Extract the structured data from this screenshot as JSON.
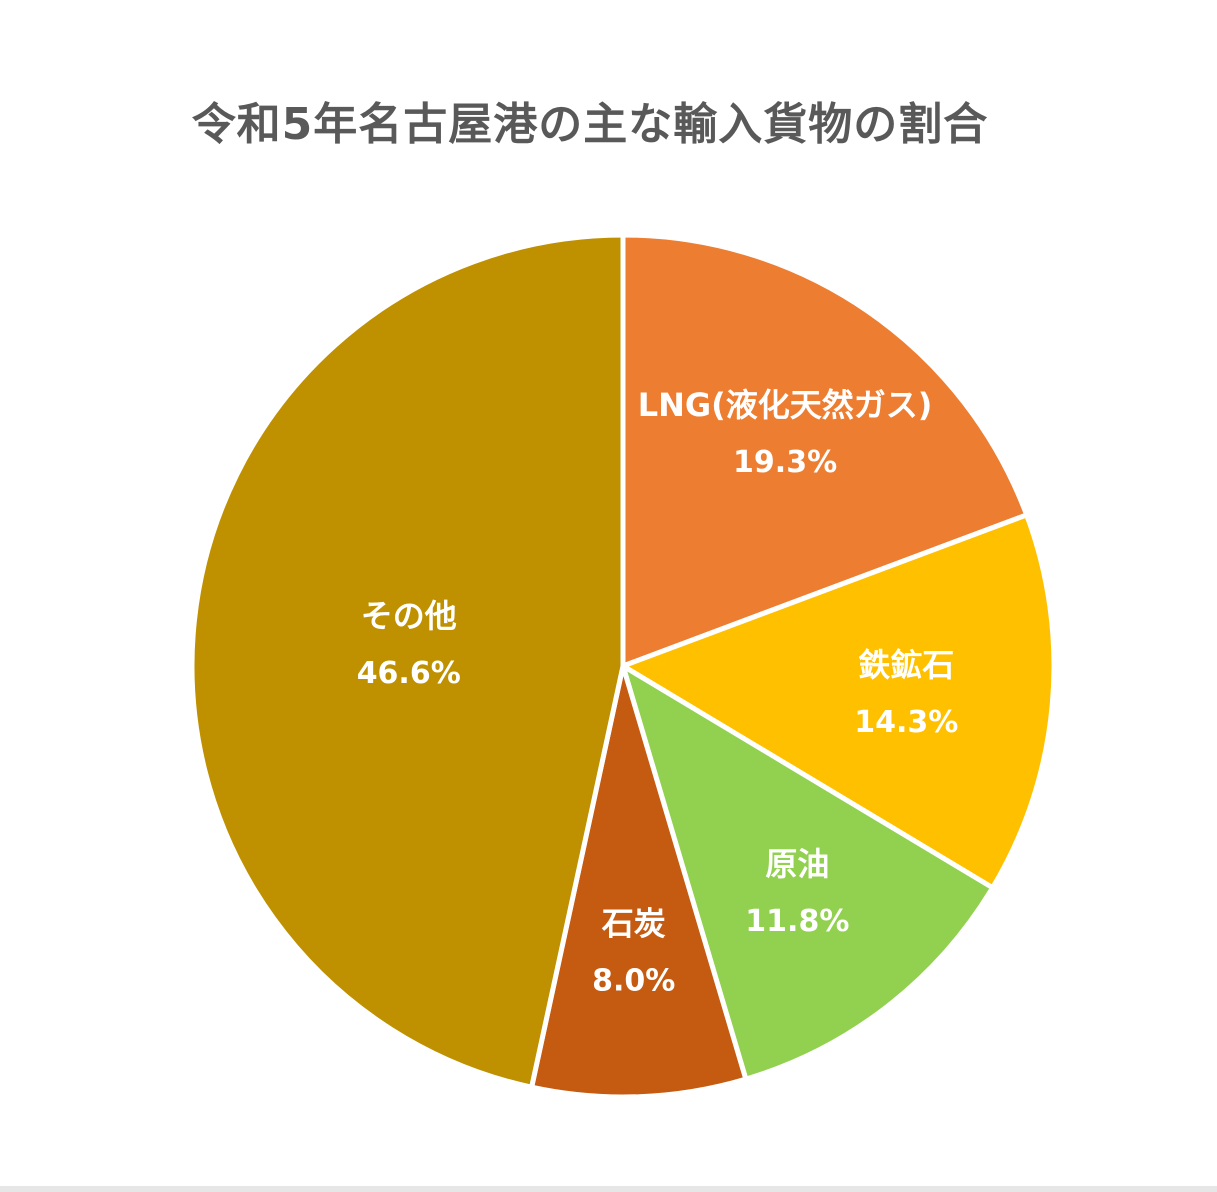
{
  "chart_data": {
    "type": "pie",
    "title": "令和5年名古屋港の主な輸入貨物の割合",
    "start_angle_deg": 0,
    "direction": "clockwise",
    "slices": [
      {
        "label": "LNG(液化天然ガス)",
        "value": 19.3,
        "value_label": "19.3%",
        "color": "#ED7D31"
      },
      {
        "label": "鉄鉱石",
        "value": 14.3,
        "value_label": "14.3%",
        "color": "#FFC000"
      },
      {
        "label": "原油",
        "value": 11.8,
        "value_label": "11.8%",
        "color": "#92D050"
      },
      {
        "label": "石炭",
        "value": 8.0,
        "value_label": "8.0%",
        "color": "#C55A11"
      },
      {
        "label": "その他",
        "value": 46.6,
        "value_label": "46.6%",
        "color": "#BF9000"
      }
    ]
  }
}
